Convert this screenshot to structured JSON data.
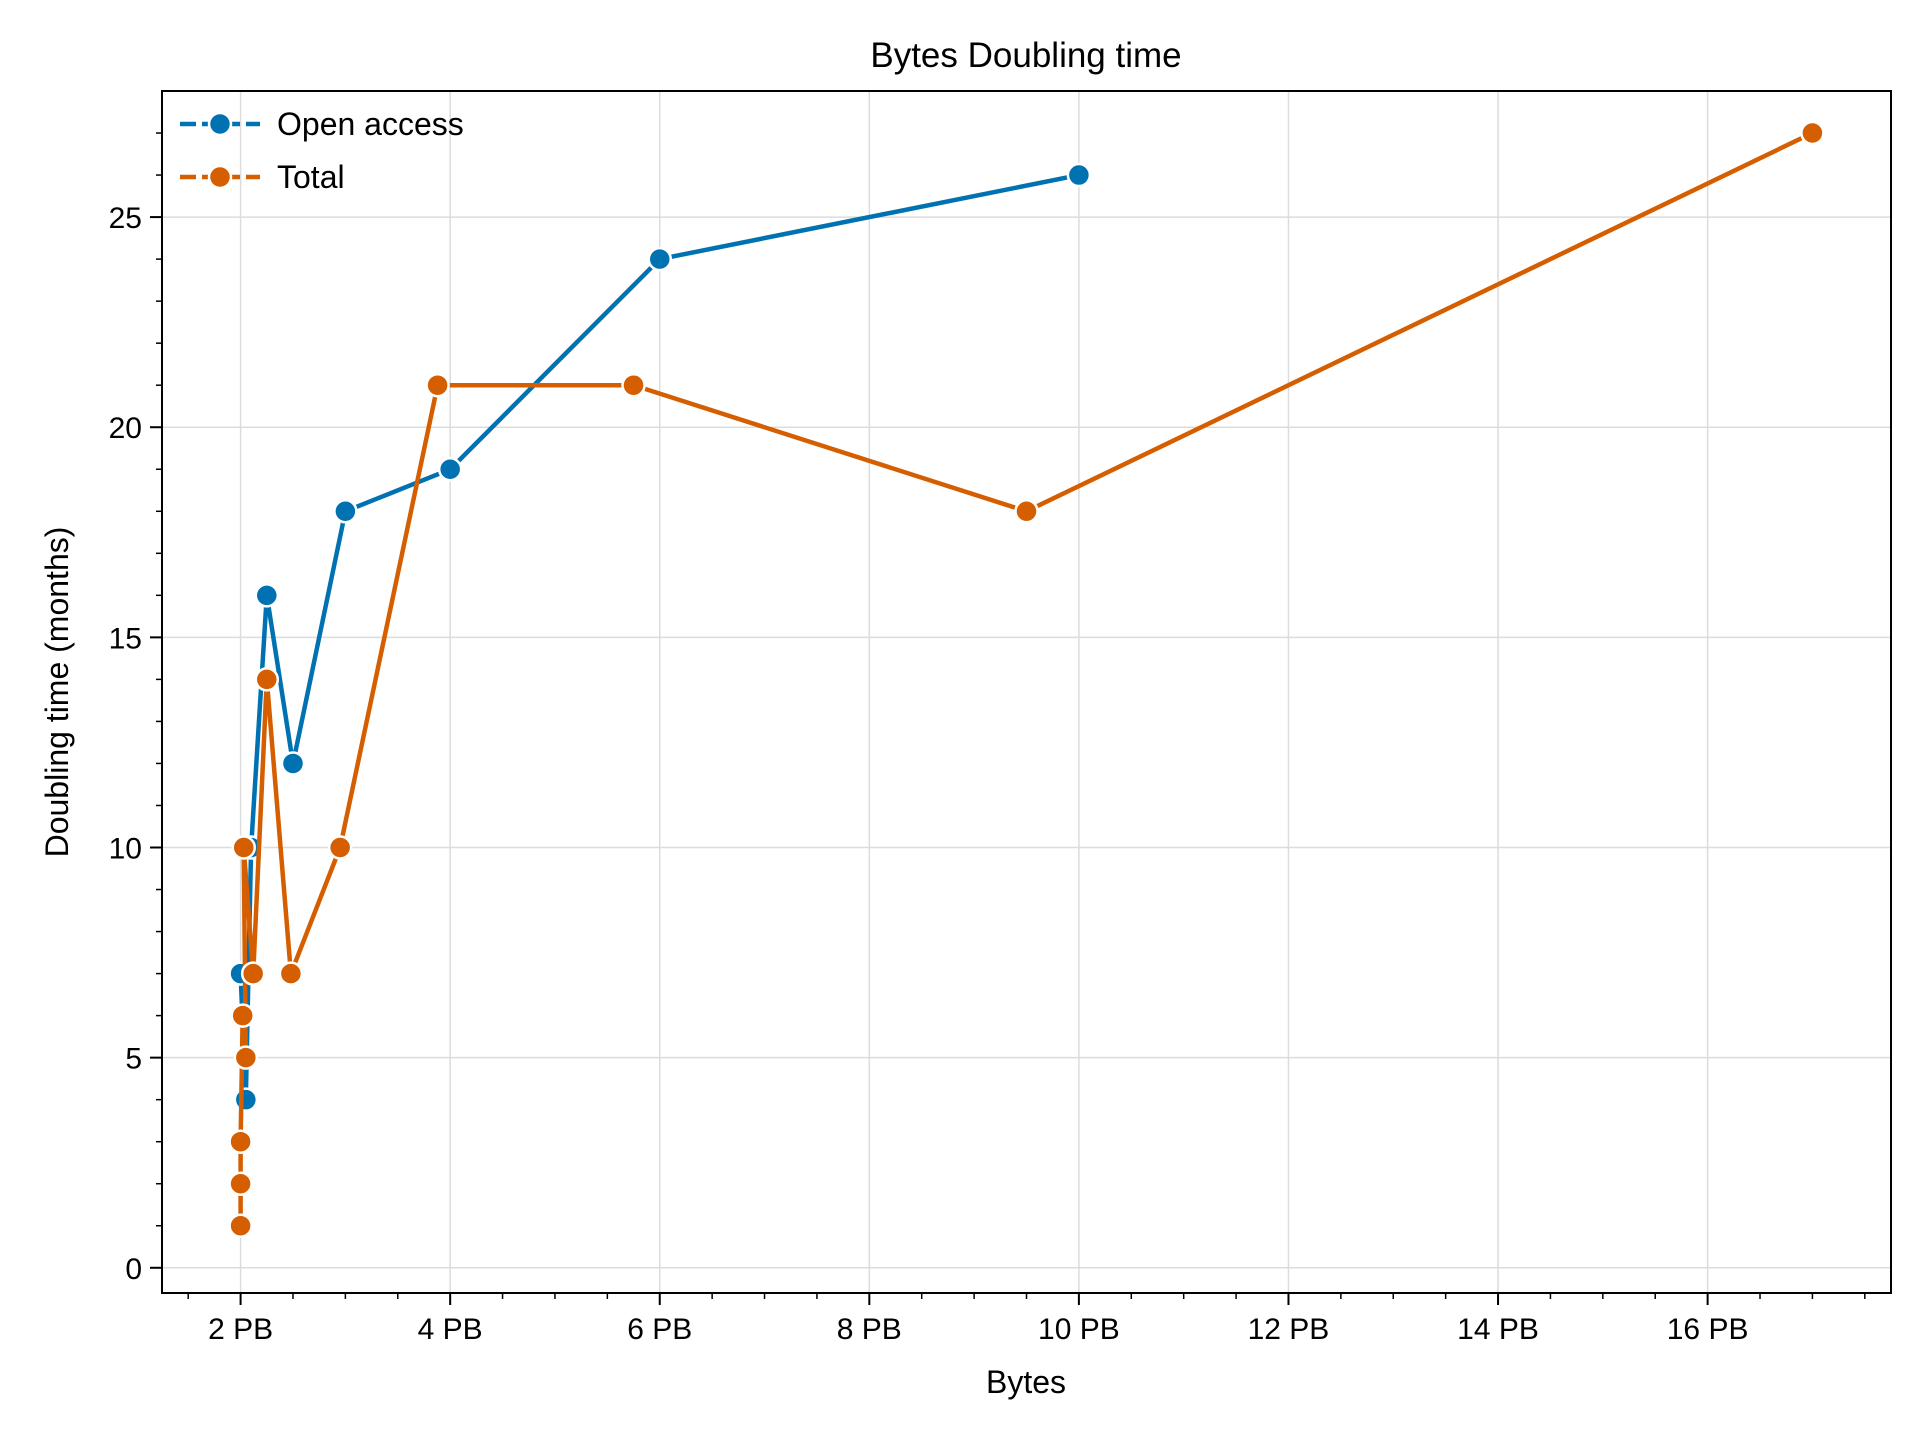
{
  "chart_data": {
    "type": "line",
    "title": "Bytes Doubling time",
    "xlabel": "Bytes",
    "ylabel": "Doubling time (months)",
    "x_unit": "PB",
    "xlim": [
      1.25,
      17.75
    ],
    "ylim": [
      -0.6,
      28.0
    ],
    "x_ticks": [
      2,
      4,
      6,
      8,
      10,
      12,
      14,
      16
    ],
    "x_tick_labels": [
      "2 PB",
      "4 PB",
      "6 PB",
      "8 PB",
      "10 PB",
      "12 PB",
      "14 PB",
      "16 PB"
    ],
    "y_ticks": [
      0,
      5,
      10,
      15,
      20,
      25
    ],
    "y_tick_labels": [
      "0",
      "5",
      "10",
      "15",
      "20",
      "25"
    ],
    "grid": true,
    "legend_position": "top-left",
    "series": [
      {
        "name": "Open access",
        "color": "#0072B2",
        "marker": "circle",
        "points": [
          {
            "x": 2.0,
            "y": 7
          },
          {
            "x": 2.05,
            "y": 4
          },
          {
            "x": 2.1,
            "y": 10
          },
          {
            "x": 2.25,
            "y": 16
          },
          {
            "x": 2.5,
            "y": 12
          },
          {
            "x": 3.0,
            "y": 18
          },
          {
            "x": 4.0,
            "y": 19
          },
          {
            "x": 6.0,
            "y": 24
          },
          {
            "x": 10.0,
            "y": 26
          }
        ]
      },
      {
        "name": "Total",
        "color": "#D55E00",
        "marker": "circle",
        "points": [
          {
            "x": 2.0,
            "y": 1
          },
          {
            "x": 2.0,
            "y": 2
          },
          {
            "x": 2.0,
            "y": 3
          },
          {
            "x": 2.02,
            "y": 6
          },
          {
            "x": 2.05,
            "y": 5
          },
          {
            "x": 2.03,
            "y": 10
          },
          {
            "x": 2.12,
            "y": 7
          },
          {
            "x": 2.25,
            "y": 14
          },
          {
            "x": 2.48,
            "y": 7
          },
          {
            "x": 2.95,
            "y": 10
          },
          {
            "x": 3.88,
            "y": 21
          },
          {
            "x": 5.75,
            "y": 21
          },
          {
            "x": 9.5,
            "y": 18
          },
          {
            "x": 17.0,
            "y": 27
          }
        ]
      }
    ]
  }
}
